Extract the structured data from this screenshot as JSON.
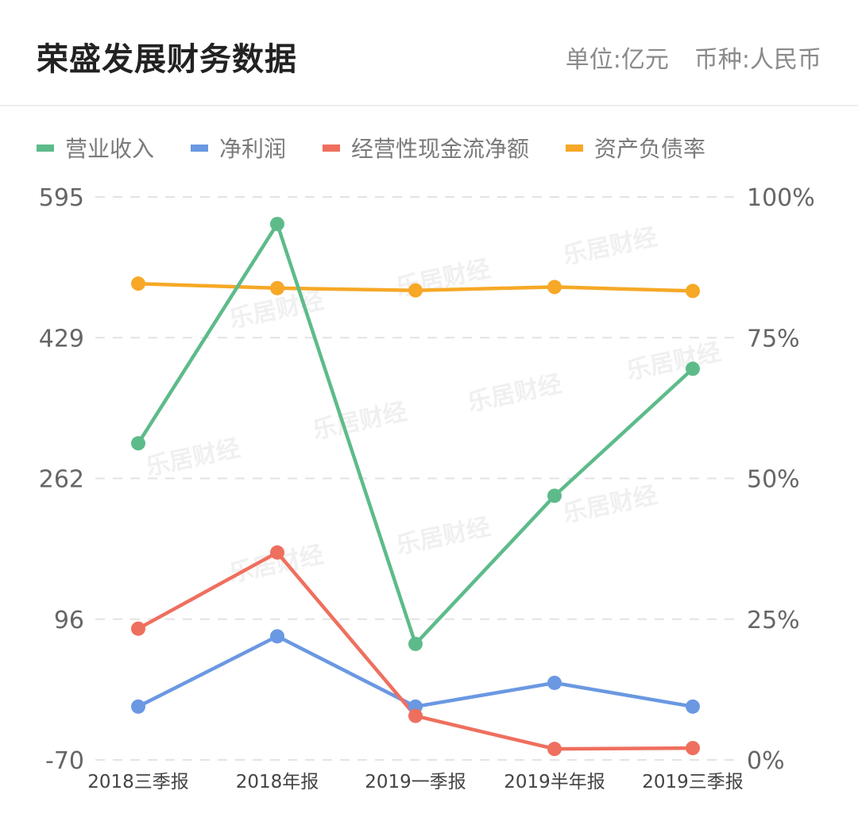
{
  "header": {
    "title": "荣盛发展财务数据",
    "unit": "单位:亿元",
    "currency": "币种:人民币"
  },
  "watermark": "乐居财经",
  "colors": {
    "revenue": "#5dbb8a",
    "net_profit": "#6a98e2",
    "cash_flow": "#ef6f5e",
    "debt_ratio": "#f6a826",
    "grid": "#e3e3e3",
    "axis_text": "#666666"
  },
  "chart_data": {
    "type": "line",
    "categories": [
      "2018三季报",
      "2018年报",
      "2019一季报",
      "2019半年报",
      "2019三季报"
    ],
    "left_axis": {
      "ticks": [
        "595",
        "429",
        "262",
        "96",
        "-70"
      ],
      "ylim": [
        -70,
        595
      ]
    },
    "right_axis": {
      "ticks": [
        "100%",
        "75%",
        "50%",
        "25%",
        "0%"
      ],
      "ylim": [
        0,
        100
      ]
    },
    "grid": true,
    "legend_position": "top-left",
    "series": [
      {
        "name": "营业收入",
        "key": "revenue",
        "axis": "left",
        "values": [
          304,
          563,
          67,
          242,
          392
        ]
      },
      {
        "name": "净利润",
        "key": "net_profit",
        "axis": "left",
        "values": [
          -7,
          76,
          -7,
          21,
          -7
        ]
      },
      {
        "name": "经营性现金流净额",
        "key": "cash_flow",
        "axis": "left",
        "values": [
          85,
          175,
          -18,
          -57,
          -56
        ]
      },
      {
        "name": "资产负债率",
        "key": "debt_ratio",
        "axis": "right",
        "values": [
          84.6,
          83.8,
          83.4,
          84.0,
          83.3
        ]
      }
    ]
  }
}
